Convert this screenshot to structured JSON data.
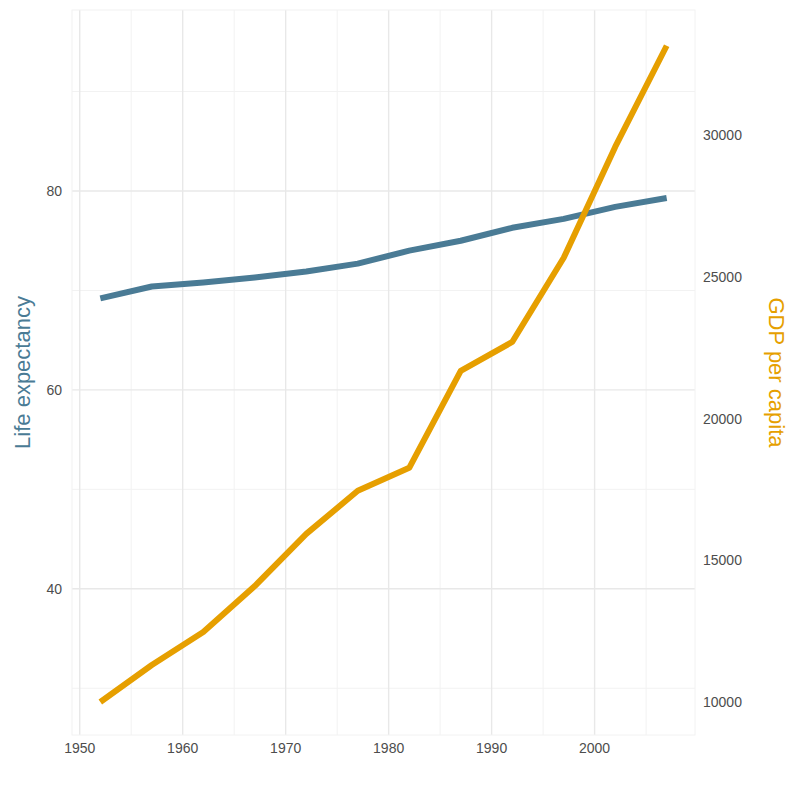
{
  "chart_data": {
    "type": "line",
    "ylabel": "Life expectancy",
    "y2label": "GDP per capita",
    "x": [
      1952,
      1957,
      1962,
      1967,
      1972,
      1977,
      1982,
      1987,
      1992,
      1997,
      2002,
      2007
    ],
    "series": [
      {
        "name": "Life expectancy",
        "color": "#4a7b95",
        "axis": "y",
        "values": [
          69.2,
          70.4,
          70.8,
          71.3,
          71.9,
          72.7,
          74.0,
          75.0,
          76.3,
          77.2,
          78.4,
          79.3
        ]
      },
      {
        "name": "GDP per capita",
        "color": "#e69f00",
        "axis": "y2",
        "values": [
          10000,
          11305,
          12470,
          14090,
          15930,
          17450,
          18260,
          21680,
          22700,
          25670,
          29580,
          33150
        ]
      }
    ],
    "xlim": [
      1949.25,
      2009.75
    ],
    "xticks": [
      1950,
      1960,
      1970,
      1980,
      1990,
      2000
    ],
    "ylim": [
      25.3,
      98.2
    ],
    "yticks": [
      40,
      60,
      80
    ],
    "y2lim": [
      8836,
      34411
    ],
    "y2ticks": [
      10000,
      15000,
      20000,
      25000,
      30000
    ],
    "grid": true
  }
}
